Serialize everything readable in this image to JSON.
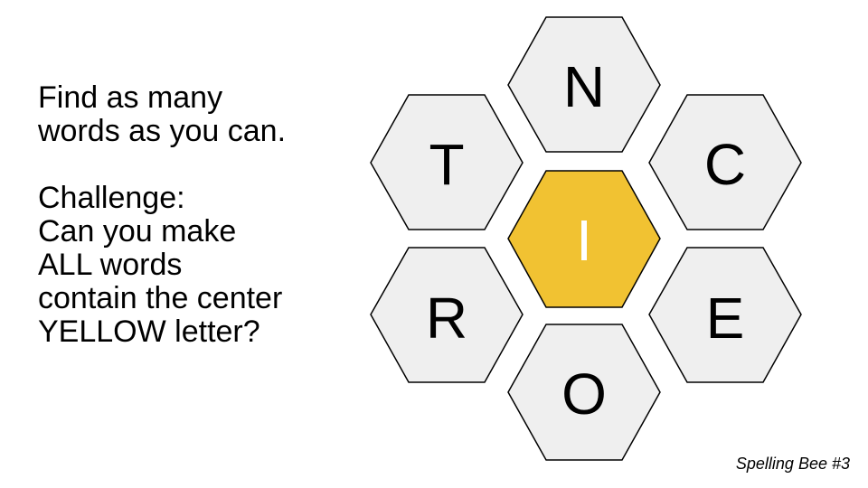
{
  "instructions": {
    "line1": "Find as many",
    "line2": "words as you can.",
    "line3": "Challenge:",
    "line4": "Can you make",
    "line5": "ALL words",
    "line6": "contain the center",
    "line7": "YELLOW letter?"
  },
  "puzzle": {
    "center_letter": "I",
    "outer_letters": {
      "top": "N",
      "upper_left": "T",
      "upper_right": "C",
      "lower_left": "R",
      "lower_right": "E",
      "bottom": "O"
    },
    "colors": {
      "outer_fill": "#efefef",
      "center_fill": "#f1c232",
      "outer_text": "#000000",
      "center_text": "#ffffff"
    }
  },
  "footer": {
    "label": "Spelling Bee #3"
  }
}
